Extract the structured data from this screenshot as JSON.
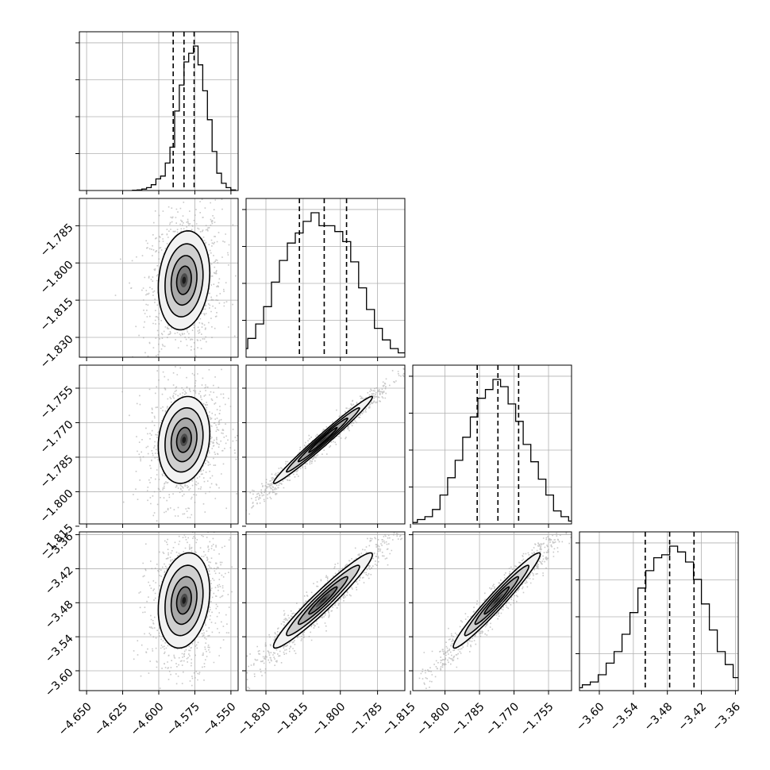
{
  "colors": {
    "hist": "#000000",
    "grid": "#b0b0b0",
    "points": "#9a9a9a",
    "density": [
      "#f2f2f2",
      "#cfcfcf",
      "#a8a8a8",
      "#7a7a7a",
      "#4a4a4a",
      "#1a1a1a"
    ]
  },
  "chart_data": {
    "type": "corner",
    "grid": true,
    "parameters": [
      {
        "range": [
          -4.655,
          -4.545
        ],
        "ticks": [
          -4.65,
          -4.625,
          -4.6,
          -4.575,
          -4.55
        ],
        "tick_labels": [
          "−4.650",
          "−4.625",
          "−4.600",
          "−4.575",
          "−4.550"
        ],
        "quantiles": [
          -4.59,
          -4.5825,
          -4.5755
        ],
        "mean": -4.5825,
        "sd": 0.0085
      },
      {
        "range": [
          -1.838,
          -1.774
        ],
        "ticks": [
          -1.83,
          -1.815,
          -1.8,
          -1.785
        ],
        "tick_labels": [
          "−1.830",
          "−1.815",
          "−1.800",
          "−1.785"
        ],
        "quantiles": [
          -1.8165,
          -1.8065,
          -1.7975
        ],
        "mean": -1.807,
        "sd": 0.0095
      },
      {
        "range": [
          -1.814,
          -1.745
        ],
        "ticks": [
          -1.815,
          -1.8,
          -1.785,
          -1.77,
          -1.755
        ],
        "tick_labels": [
          "−1.815",
          "−1.800",
          "−1.785",
          "−1.770",
          "−1.755"
        ],
        "quantiles": [
          -1.786,
          -1.777,
          -1.768
        ],
        "mean": -1.7775,
        "sd": 0.009
      },
      {
        "range": [
          -3.635,
          -3.355
        ],
        "ticks": [
          -3.6,
          -3.54,
          -3.48,
          -3.42,
          -3.36
        ],
        "tick_labels": [
          "−3.60",
          "−3.54",
          "−3.48",
          "−3.42",
          "−3.36"
        ],
        "quantiles": [
          -3.519,
          -3.476,
          -3.433
        ],
        "mean": -3.476,
        "sd": 0.04
      }
    ],
    "correlations": [
      [
        1.0,
        0.15,
        0.15,
        0.2
      ],
      [
        0.15,
        1.0,
        0.985,
        0.96
      ],
      [
        0.15,
        0.985,
        1.0,
        0.97
      ],
      [
        0.2,
        0.96,
        0.97,
        1.0
      ]
    ],
    "histograms": [
      [
        0.002,
        0.004,
        0.01,
        0.02,
        0.04,
        0.08,
        0.1,
        0.19,
        0.3,
        0.55,
        0.73,
        0.89,
        0.95,
        1.0,
        0.87,
        0.69,
        0.49,
        0.27,
        0.12,
        0.05,
        0.02,
        0.004
      ],
      [
        0.01,
        0.03,
        0.06,
        0.13,
        0.23,
        0.35,
        0.52,
        0.67,
        0.79,
        0.86,
        0.94,
        1.0,
        0.91,
        0.91,
        0.87,
        0.8,
        0.66,
        0.48,
        0.33,
        0.2,
        0.12,
        0.06,
        0.03,
        0.01,
        0.005
      ],
      [
        0.01,
        0.03,
        0.05,
        0.1,
        0.2,
        0.32,
        0.44,
        0.6,
        0.74,
        0.87,
        0.93,
        1.0,
        0.95,
        0.83,
        0.71,
        0.55,
        0.43,
        0.31,
        0.2,
        0.09,
        0.05,
        0.02,
        0.01
      ],
      [
        0.02,
        0.04,
        0.06,
        0.11,
        0.19,
        0.27,
        0.39,
        0.54,
        0.71,
        0.83,
        0.92,
        0.94,
        1.0,
        0.96,
        0.89,
        0.77,
        0.6,
        0.42,
        0.27,
        0.18,
        0.09,
        0.05,
        0.02,
        0.01
      ]
    ]
  }
}
